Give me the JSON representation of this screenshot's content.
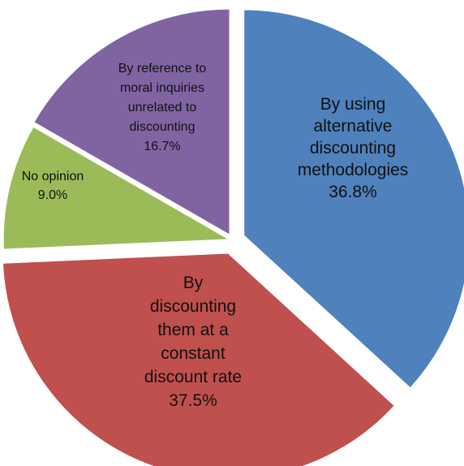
{
  "chart_data": {
    "type": "pie",
    "title": "",
    "exploded": true,
    "slices": [
      {
        "label_lines": [
          "By using",
          "alternative",
          "discounting",
          "methodologies"
        ],
        "percent_label": "36.8%",
        "value": 36.8,
        "color": "#4f81bd"
      },
      {
        "label_lines": [
          "By",
          "discounting",
          "them at a",
          "constant",
          "discount rate"
        ],
        "percent_label": "37.5%",
        "value": 37.5,
        "color": "#c0504d"
      },
      {
        "label_lines": [
          "No opinion"
        ],
        "percent_label": "9.0%",
        "value": 9.0,
        "color": "#9bbb59"
      },
      {
        "label_lines": [
          "By reference to",
          "moral inquiries",
          "unrelated to",
          "discounting"
        ],
        "percent_label": "16.7%",
        "value": 16.7,
        "color": "#8064a2"
      }
    ]
  }
}
